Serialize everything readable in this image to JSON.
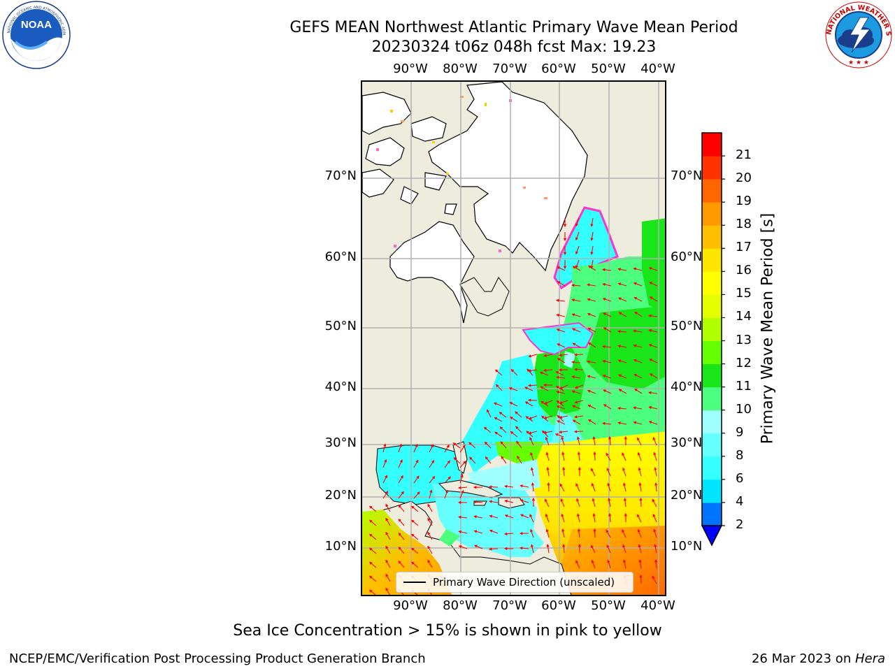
{
  "title": {
    "line1": "GEFS MEAN Northwest Atlantic Primary Wave Mean Period",
    "line2": "20230324 t06z 048h fcst   Max: 19.23"
  },
  "logos": {
    "noaa_text": "NOAA",
    "noaa_ring": "NATIONAL OCEANIC AND ATMOSPHERIC ADMINISTRATION · U.S. DEPARTMENT OF COMMERCE",
    "nws_ring": "NATIONAL WEATHER SERVICE"
  },
  "map": {
    "lon_labels": [
      "90°W",
      "80°W",
      "70°W",
      "60°W",
      "50°W",
      "40°W"
    ],
    "lat_labels": [
      "70°N",
      "60°N",
      "50°N",
      "40°N",
      "30°N",
      "20°N",
      "10°N"
    ],
    "legend_label": "Primary Wave Direction (unscaled)",
    "colors": {
      "land": "#eeecdd",
      "ice": "#ffffff",
      "arrow": "#ff0000",
      "grid": "#b0b0b0"
    }
  },
  "colorbar": {
    "label": "Primary Wave Mean Period [s]",
    "ticks": [
      "2",
      "4",
      "6",
      "8",
      "9",
      "10",
      "11",
      "12",
      "13",
      "14",
      "15",
      "16",
      "17",
      "18",
      "19",
      "20",
      "21"
    ],
    "colors": [
      "#0073ff",
      "#00e5ff",
      "#33ffff",
      "#66ffff",
      "#a0ffff",
      "#4cff7f",
      "#19e619",
      "#66ff00",
      "#b2ff00",
      "#e6ff00",
      "#ffff00",
      "#ffe600",
      "#ffbf00",
      "#ff9900",
      "#ff6600",
      "#ff3300",
      "#ff0000"
    ],
    "under_color": "#0000ff"
  },
  "note": "Sea Ice Concentration > 15% is shown in pink to yellow",
  "footer": {
    "left": "NCEP/EMC/Verification Post Processing Product Generation Branch",
    "date": "26 Mar 2023 on ",
    "machine": "Hera"
  }
}
